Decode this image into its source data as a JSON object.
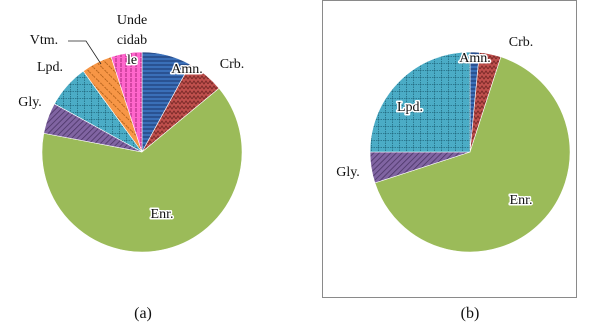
{
  "chart_data": [
    {
      "type": "pie",
      "caption": "(a)",
      "slices": [
        {
          "label": "Amn.",
          "value": 8.0,
          "color": "#3a6fb8",
          "pattern": "hlines"
        },
        {
          "label": "Crb.",
          "value": 6.0,
          "color": "#c0504d",
          "pattern": "zigzag"
        },
        {
          "label": "Enr.",
          "value": 64.0,
          "color": "#9bbb59",
          "pattern": "none"
        },
        {
          "label": "Gly.",
          "value": 5.0,
          "color": "#8064a2",
          "pattern": "diag"
        },
        {
          "label": "Lpd.",
          "value": 7.0,
          "color": "#4bacc6",
          "pattern": "grid"
        },
        {
          "label": "Vtm.",
          "value": 5.0,
          "color": "#f79646",
          "pattern": "diagdash"
        },
        {
          "label": "Unde cidab le",
          "value": 5.0,
          "color": "#ff66cc",
          "pattern": "vlines"
        }
      ]
    },
    {
      "type": "pie",
      "caption": "(b)",
      "slices": [
        {
          "label": "Amn.",
          "value": 1.5,
          "color": "#3a6fb8",
          "pattern": "hlines"
        },
        {
          "label": "Crb.",
          "value": 3.5,
          "color": "#c0504d",
          "pattern": "zigzag"
        },
        {
          "label": "Enr.",
          "value": 65.0,
          "color": "#9bbb59",
          "pattern": "none"
        },
        {
          "label": "Gly.",
          "value": 5.0,
          "color": "#8064a2",
          "pattern": "diag"
        },
        {
          "label": "Lpd.",
          "value": 25.0,
          "color": "#4bacc6",
          "pattern": "grid"
        }
      ]
    }
  ]
}
